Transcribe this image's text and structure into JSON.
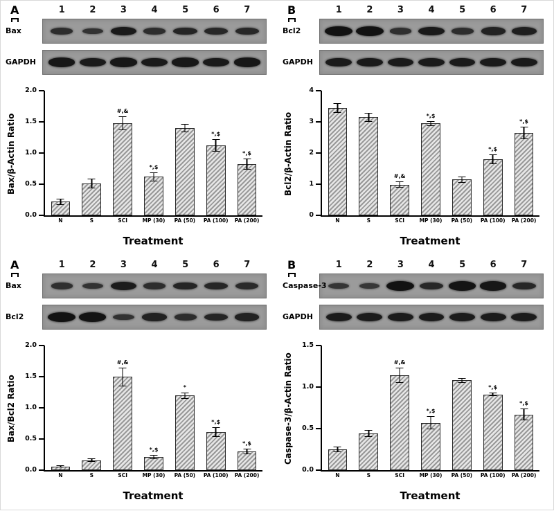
{
  "figure": {
    "panels": [
      {
        "letter": "A",
        "lanes": [
          "1",
          "2",
          "3",
          "4",
          "5",
          "6",
          "7"
        ],
        "blots": [
          {
            "label": "Bax",
            "bands": [
              0.5,
              0.4,
              0.85,
              0.5,
              0.65,
              0.6,
              0.6
            ]
          },
          {
            "label": "GAPDH",
            "bands": [
              0.9,
              0.85,
              0.9,
              0.85,
              0.9,
              0.85,
              0.9
            ]
          }
        ]
      },
      {
        "letter": "B",
        "lanes": [
          "1",
          "2",
          "3",
          "4",
          "5",
          "6",
          "7"
        ],
        "blots": [
          {
            "label": "Bcl2",
            "bands": [
              1.0,
              1.0,
              0.45,
              0.85,
              0.5,
              0.7,
              0.75
            ]
          },
          {
            "label": "GAPDH",
            "bands": [
              0.85,
              0.85,
              0.85,
              0.85,
              0.85,
              0.85,
              0.85
            ]
          }
        ]
      },
      {
        "letter": "A",
        "lanes": [
          "1",
          "2",
          "3",
          "4",
          "5",
          "6",
          "7"
        ],
        "blots": [
          {
            "label": "Bax",
            "bands": [
              0.45,
              0.4,
              0.8,
              0.5,
              0.65,
              0.6,
              0.55
            ]
          },
          {
            "label": "Bcl2",
            "bands": [
              1.0,
              0.95,
              0.4,
              0.7,
              0.5,
              0.65,
              0.7
            ]
          }
        ]
      },
      {
        "letter": "B",
        "lanes": [
          "1",
          "2",
          "3",
          "4",
          "5",
          "6",
          "7"
        ],
        "blots": [
          {
            "label": "Caspase-3",
            "bands": [
              0.35,
              0.3,
              1.0,
              0.6,
              0.95,
              0.9,
              0.6
            ]
          },
          {
            "label": "GAPDH",
            "bands": [
              0.8,
              0.8,
              0.8,
              0.8,
              0.8,
              0.8,
              0.8
            ]
          }
        ]
      }
    ]
  },
  "chart_data": [
    {
      "type": "bar",
      "categories": [
        "N",
        "S",
        "SCI",
        "MP (30)",
        "PA (50)",
        "PA (100)",
        "PA (200)"
      ],
      "values": [
        0.22,
        0.51,
        1.48,
        0.62,
        1.4,
        1.12,
        0.82
      ],
      "errors": [
        0.05,
        0.08,
        0.11,
        0.07,
        0.07,
        0.1,
        0.09
      ],
      "annotations": [
        "",
        "",
        "#,&",
        "*,$",
        "",
        "*,$",
        "*,$"
      ],
      "title": "",
      "xlabel": "Treatment",
      "ylabel": "Bax/β-Actin Ratio",
      "ylim": [
        0,
        2.0
      ],
      "yticks": [
        0,
        0.5,
        1.0,
        1.5,
        2.0
      ],
      "ytick_labels": [
        "0.0",
        "0.5",
        "1.0",
        "1.5",
        "2.0"
      ],
      "grid": false,
      "legend": "none"
    },
    {
      "type": "bar",
      "categories": [
        "N",
        "S",
        "SCI",
        "MP (30)",
        "PA (50)",
        "PA (100)",
        "PA (200)"
      ],
      "values": [
        3.45,
        3.15,
        0.98,
        2.95,
        1.15,
        1.8,
        2.65
      ],
      "errors": [
        0.15,
        0.15,
        0.1,
        0.08,
        0.1,
        0.15,
        0.2
      ],
      "annotations": [
        "",
        "",
        "#,&",
        "*,$",
        "",
        "*,$",
        "*,$"
      ],
      "title": "",
      "xlabel": "Treatment",
      "ylabel": "Bcl2/β-Actin Ratio",
      "ylim": [
        0,
        4
      ],
      "yticks": [
        0,
        1,
        2,
        3,
        4
      ],
      "ytick_labels": [
        "0",
        "1",
        "2",
        "3",
        "4"
      ],
      "grid": false,
      "legend": "none"
    },
    {
      "type": "bar",
      "categories": [
        "N",
        "S",
        "SCI",
        "MP (30)",
        "PA (50)",
        "PA (100)",
        "PA (200)"
      ],
      "values": [
        0.06,
        0.16,
        1.5,
        0.21,
        1.2,
        0.61,
        0.3
      ],
      "errors": [
        0.02,
        0.03,
        0.15,
        0.03,
        0.05,
        0.08,
        0.04
      ],
      "annotations": [
        "",
        "",
        "#,&",
        "*,$",
        "*",
        "*,$",
        "*,$"
      ],
      "title": "",
      "xlabel": "Treatment",
      "ylabel": "Bax/Bcl2 Ratio",
      "ylim": [
        0,
        2.0
      ],
      "yticks": [
        0,
        0.5,
        1.0,
        1.5,
        2.0
      ],
      "ytick_labels": [
        "0.0",
        "0.5",
        "1.0",
        "1.5",
        "2.0"
      ],
      "grid": false,
      "legend": "none"
    },
    {
      "type": "bar",
      "categories": [
        "N",
        "S",
        "SCI",
        "MP (30)",
        "PA (50)",
        "PA (100)",
        "PA (200)"
      ],
      "values": [
        0.25,
        0.44,
        1.14,
        0.57,
        1.08,
        0.91,
        0.67
      ],
      "errors": [
        0.03,
        0.04,
        0.09,
        0.08,
        0.03,
        0.02,
        0.07
      ],
      "annotations": [
        "",
        "",
        "#,&",
        "*,$",
        "",
        "*,$",
        "*,$"
      ],
      "title": "",
      "xlabel": "Treatment",
      "ylabel": "Caspase-3/β-Actin Ratio",
      "ylim": [
        0,
        1.5
      ],
      "yticks": [
        0,
        0.5,
        1.0,
        1.5
      ],
      "ytick_labels": [
        "0.0",
        "0.5",
        "1.0",
        "1.5"
      ],
      "grid": false,
      "legend": "none"
    }
  ]
}
